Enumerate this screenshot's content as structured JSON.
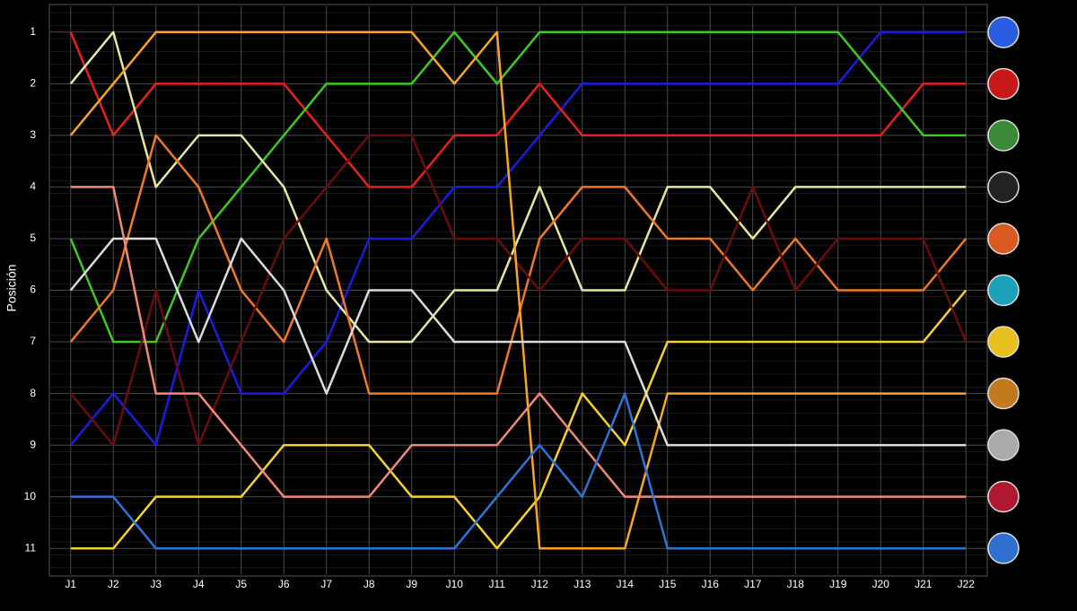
{
  "chart_data": {
    "type": "line",
    "y_label": "Posición",
    "categories": [
      "J1",
      "J2",
      "J3",
      "J4",
      "J5",
      "J6",
      "J7",
      "J8",
      "J9",
      "J10",
      "J11",
      "J12",
      "J13",
      "J14",
      "J15",
      "J16",
      "J17",
      "J18",
      "J19",
      "J20",
      "J21",
      "J22"
    ],
    "ylim": [
      11.5,
      0.5
    ],
    "yticks": [
      1,
      2,
      3,
      4,
      5,
      6,
      7,
      8,
      9,
      10,
      11
    ],
    "grid": true,
    "series": [
      {
        "color": "#1c1ce0",
        "values": [
          9,
          8,
          9,
          6,
          8,
          8,
          7,
          5,
          5,
          4,
          4,
          3,
          2,
          2,
          2,
          2,
          2,
          2,
          2,
          1,
          1,
          1
        ]
      },
      {
        "color": "#e8201c",
        "values": [
          1,
          3,
          2,
          2,
          2,
          2,
          3,
          4,
          4,
          3,
          3,
          2,
          3,
          3,
          3,
          3,
          3,
          3,
          3,
          3,
          2,
          2
        ]
      },
      {
        "color": "#3ec925",
        "values": [
          5,
          7,
          7,
          5,
          4,
          3,
          2,
          2,
          2,
          1,
          2,
          1,
          1,
          1,
          1,
          1,
          1,
          1,
          1,
          2,
          3,
          3
        ]
      },
      {
        "color": "#e6e6a0",
        "values": [
          2,
          1,
          4,
          3,
          3,
          4,
          6,
          7,
          7,
          6,
          6,
          4,
          6,
          6,
          4,
          4,
          5,
          4,
          4,
          4,
          4,
          4
        ]
      },
      {
        "color": "#f07828",
        "values": [
          7,
          6,
          3,
          4,
          6,
          7,
          5,
          8,
          8,
          8,
          8,
          5,
          4,
          4,
          5,
          5,
          6,
          5,
          6,
          6,
          6,
          5
        ]
      },
      {
        "color": "#f5d232",
        "values": [
          11,
          11,
          10,
          10,
          10,
          9,
          9,
          9,
          10,
          10,
          11,
          10,
          8,
          9,
          7,
          7,
          7,
          7,
          7,
          7,
          7,
          6
        ]
      },
      {
        "color": "#6b0c0c",
        "values": [
          8,
          9,
          6,
          9,
          7,
          5,
          4,
          3,
          3,
          5,
          5,
          6,
          5,
          5,
          6,
          6,
          4,
          6,
          5,
          5,
          5,
          7
        ]
      },
      {
        "color": "#f5a623",
        "values": [
          3,
          2,
          1,
          1,
          1,
          1,
          1,
          1,
          1,
          2,
          1,
          11,
          11,
          11,
          8,
          8,
          8,
          8,
          8,
          8,
          8,
          8
        ]
      },
      {
        "color": "#dcdcdc",
        "values": [
          6,
          5,
          5,
          7,
          5,
          6,
          8,
          6,
          6,
          7,
          7,
          7,
          7,
          7,
          9,
          9,
          9,
          9,
          9,
          9,
          9,
          9
        ]
      },
      {
        "color": "#f08a78",
        "values": [
          4,
          4,
          8,
          8,
          9,
          10,
          10,
          10,
          9,
          9,
          9,
          8,
          9,
          10,
          10,
          10,
          10,
          10,
          10,
          10,
          10,
          10
        ]
      },
      {
        "color": "#2f72d8",
        "values": [
          10,
          10,
          11,
          11,
          11,
          11,
          11,
          11,
          11,
          11,
          10,
          9,
          10,
          8,
          11,
          11,
          11,
          11,
          11,
          11,
          11,
          11
        ]
      }
    ]
  }
}
